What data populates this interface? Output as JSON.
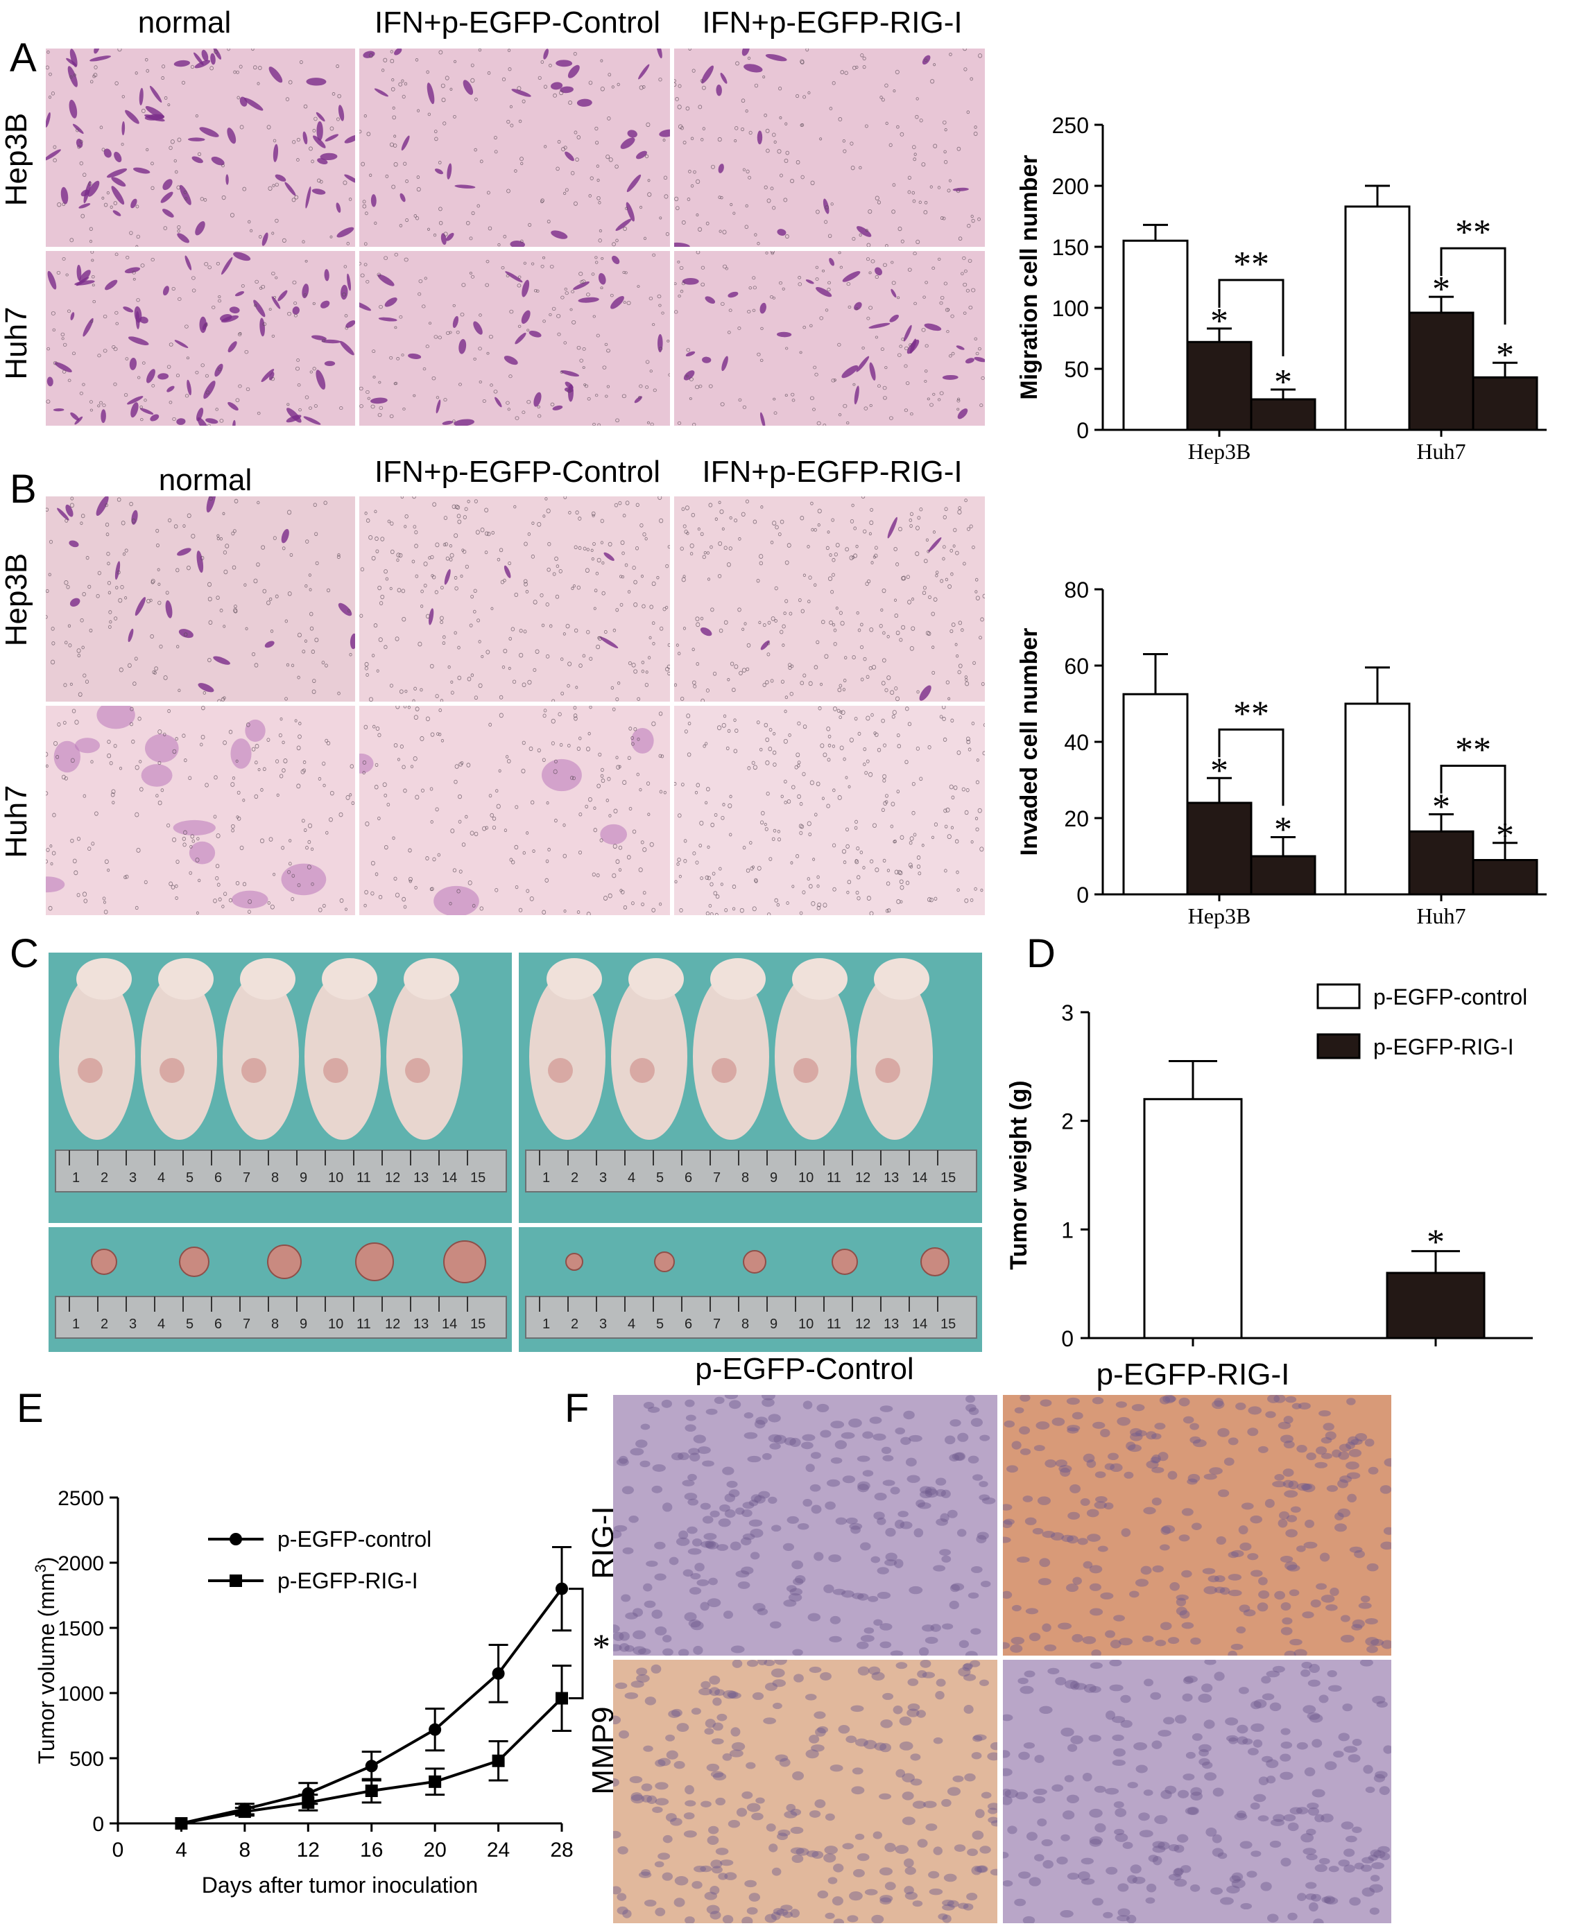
{
  "panels": {
    "A": "A",
    "B": "B",
    "C": "C",
    "D": "D",
    "E": "E",
    "F": "F"
  },
  "micrographs": {
    "col_titles_A": [
      "normal",
      "IFN+p-EGFP-Control",
      "IFN+p-EGFP-RIG-I"
    ],
    "col_titles_B": [
      "normal",
      "IFN+p-EGFP-Control",
      "IFN+p-EGFP-RIG-I"
    ],
    "row_labels": [
      "Hep3B",
      "Huh7"
    ],
    "stain_colors": {
      "background": "#e8c6d6",
      "cell": "#7a2c8a",
      "dark": "#3b1a44"
    }
  },
  "ihc": {
    "col_titles": [
      "p-EGFP-Control",
      "p-EGFP-RIG-I"
    ],
    "row_labels": [
      "RIG-I",
      "MMP9"
    ],
    "colors": {
      "blue": "#b9a6c8",
      "brown": "#d89a78",
      "tan": "#e1b89c"
    }
  },
  "ruler_numbers": [
    "1",
    "2",
    "3",
    "4",
    "5",
    "6",
    "7",
    "8",
    "9",
    "10",
    "11",
    "12",
    "13",
    "14",
    "15"
  ],
  "chart_data": [
    {
      "id": "A-chart",
      "type": "bar",
      "ylabel": "Migration cell number",
      "ylim": [
        0,
        250
      ],
      "yticks": [
        "0",
        "50",
        "100",
        "150",
        "200",
        "250"
      ],
      "categories": [
        "Hep3B",
        "Huh7"
      ],
      "series": [
        {
          "fill": "#ffffff",
          "values": [
            155,
            183
          ],
          "errors": [
            13,
            17
          ]
        },
        {
          "fill": "#231815",
          "values": [
            72,
            96
          ],
          "errors": [
            11,
            13
          ]
        },
        {
          "fill": "#231815",
          "values": [
            25,
            43
          ],
          "errors": [
            8,
            12
          ]
        }
      ],
      "annotations": {
        "single": "*",
        "double": "**"
      }
    },
    {
      "id": "B-chart",
      "type": "bar",
      "ylabel": "Invaded cell number",
      "ylim": [
        0,
        80
      ],
      "yticks": [
        "0",
        "20",
        "40",
        "60",
        "80"
      ],
      "categories": [
        "Hep3B",
        "Huh7"
      ],
      "series": [
        {
          "fill": "#ffffff",
          "values": [
            52.5,
            50
          ],
          "errors": [
            10.5,
            9.5
          ]
        },
        {
          "fill": "#231815",
          "values": [
            24,
            16.5
          ],
          "errors": [
            6.5,
            4.5
          ]
        },
        {
          "fill": "#231815",
          "values": [
            10,
            9
          ],
          "errors": [
            5,
            4.5
          ]
        }
      ],
      "annotations": {
        "single": "*",
        "double": "**"
      }
    },
    {
      "id": "D-chart",
      "type": "bar",
      "ylabel": "Tumor weight (g)",
      "ylim": [
        0,
        3
      ],
      "yticks": [
        "0",
        "1",
        "2",
        "3"
      ],
      "legend": [
        "p-EGFP-control",
        "p-EGFP-RIG-I"
      ],
      "legend_position": "top-right",
      "series": [
        {
          "name": "p-EGFP-control",
          "fill": "#ffffff",
          "value": 2.2,
          "error": 0.35
        },
        {
          "name": "p-EGFP-RIG-I",
          "fill": "#231815",
          "value": 0.6,
          "error": 0.2
        }
      ],
      "annotation": "*"
    },
    {
      "id": "E-chart",
      "type": "line",
      "xlabel": "Days after tumor inoculation",
      "ylabel": "Tumor volume (mm",
      "ylabel_sup": "3",
      "ylabel_end": ")",
      "xlim": [
        0,
        28
      ],
      "ylim": [
        0,
        2500
      ],
      "xticks": [
        "0",
        "4",
        "8",
        "12",
        "16",
        "20",
        "24",
        "28"
      ],
      "yticks": [
        "0",
        "500",
        "1000",
        "1500",
        "2000",
        "2500"
      ],
      "legend_position": "top-left",
      "series": [
        {
          "name": "p-EGFP-control",
          "marker": "circle",
          "x": [
            4,
            8,
            12,
            16,
            20,
            24,
            28
          ],
          "y": [
            0,
            110,
            230,
            440,
            720,
            1150,
            1800
          ],
          "err": [
            0,
            40,
            80,
            110,
            160,
            220,
            320
          ]
        },
        {
          "name": "p-EGFP-RIG-I",
          "marker": "square",
          "x": [
            4,
            8,
            12,
            16,
            20,
            24,
            28
          ],
          "y": [
            0,
            90,
            160,
            250,
            320,
            480,
            960
          ],
          "err": [
            0,
            30,
            60,
            90,
            100,
            150,
            250
          ]
        }
      ],
      "annotation": "*"
    }
  ]
}
